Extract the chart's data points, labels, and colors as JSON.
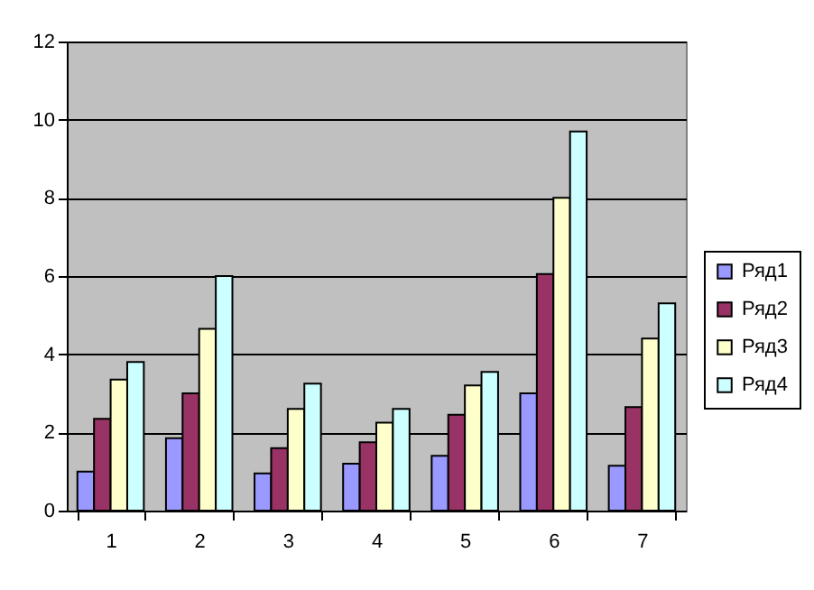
{
  "chart_data": {
    "type": "bar",
    "categories": [
      "1",
      "2",
      "3",
      "4",
      "5",
      "6",
      "7"
    ],
    "series": [
      {
        "name": "Ряд1",
        "color": "#9999ff",
        "values": [
          1.0,
          1.85,
          0.95,
          1.2,
          1.4,
          3.0,
          1.15
        ]
      },
      {
        "name": "Ряд2",
        "color": "#993366",
        "values": [
          2.35,
          3.0,
          1.6,
          1.75,
          2.45,
          6.05,
          2.65
        ]
      },
      {
        "name": "Ряд3",
        "color": "#ffffcc",
        "values": [
          3.35,
          4.65,
          2.6,
          2.25,
          3.2,
          8.0,
          4.4
        ]
      },
      {
        "name": "Ряд4",
        "color": "#ccffff",
        "values": [
          3.8,
          6.0,
          3.25,
          2.6,
          3.55,
          9.7,
          5.3
        ]
      }
    ],
    "ylim": [
      0,
      12
    ],
    "yticks": [
      0,
      2,
      4,
      6,
      8,
      10,
      12
    ],
    "grid": "y",
    "legend": "right"
  }
}
